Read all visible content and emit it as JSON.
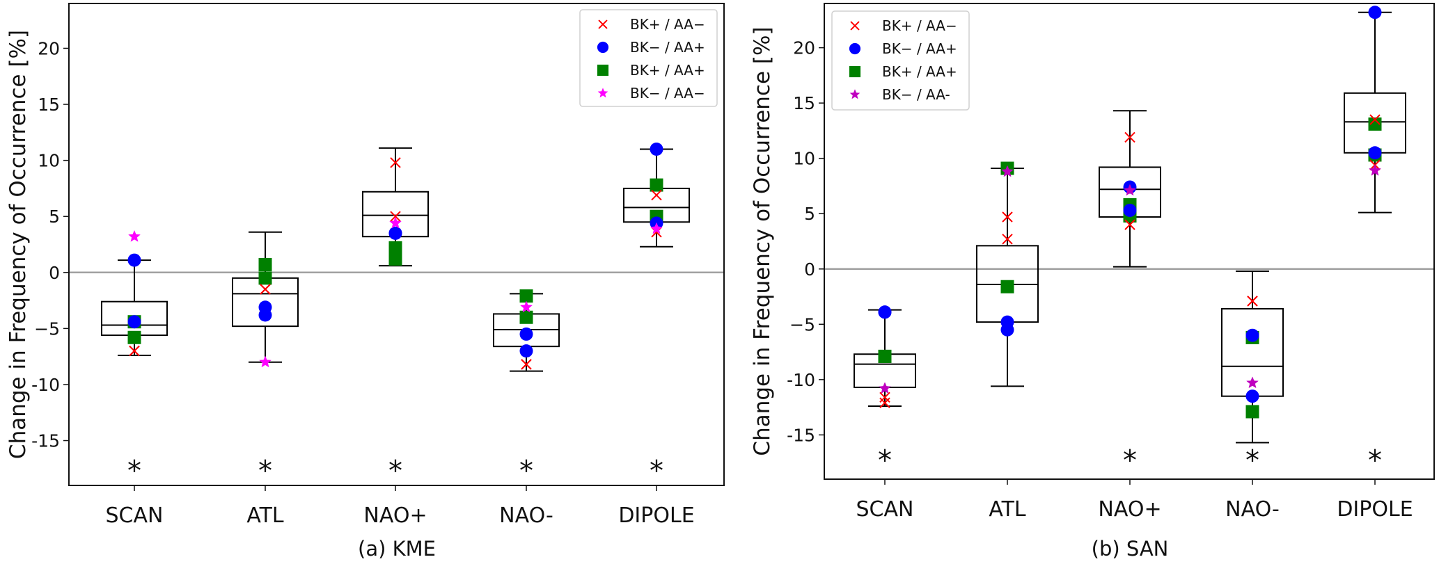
{
  "chart_data": [
    {
      "type": "box",
      "caption": "(a)  KME",
      "ylabel": "Change in Frequency of Occurrence [%]",
      "ylim": [
        -19,
        24
      ],
      "yticks": [
        -15,
        -10,
        -5,
        0,
        5,
        10,
        15,
        20
      ],
      "ytick_labels": [
        "-15",
        "-10",
        "−5",
        "0",
        "5",
        "10",
        "15",
        "20"
      ],
      "categories": [
        "SCAN",
        "ATL",
        "NAO+",
        "NAO-",
        "DIPOLE"
      ],
      "zero_line": true,
      "legend_position": "top-right",
      "legend": [
        {
          "key": "x",
          "label": "BK+ / AA−",
          "marker": "x",
          "color": "#ff0000"
        },
        {
          "key": "circle",
          "label": "BK− / AA+",
          "marker": "circle",
          "color": "#0000ff"
        },
        {
          "key": "square",
          "label": "BK+ / AA+",
          "marker": "square",
          "color": "#008000"
        },
        {
          "key": "star",
          "label": "BK− / AA−",
          "marker": "star",
          "color": "#ff00ff"
        }
      ],
      "boxes": [
        {
          "whisker_low": -7.4,
          "q1": -5.6,
          "median": -4.7,
          "q3": -2.6,
          "whisker_high": 1.1
        },
        {
          "whisker_low": -8.0,
          "q1": -4.8,
          "median": -1.9,
          "q3": -0.5,
          "whisker_high": 3.6
        },
        {
          "whisker_low": 0.6,
          "q1": 3.2,
          "median": 5.1,
          "q3": 7.2,
          "whisker_high": 11.1
        },
        {
          "whisker_low": -8.8,
          "q1": -6.6,
          "median": -5.1,
          "q3": -3.7,
          "whisker_high": -1.9
        },
        {
          "whisker_low": 2.3,
          "q1": 4.5,
          "median": 5.8,
          "q3": 7.5,
          "whisker_high": 11.0
        }
      ],
      "points": {
        "x": [
          [
            -7.0,
            -7.0
          ],
          [
            -1.5,
            -1.5
          ],
          [
            9.8,
            5.0
          ],
          [
            -8.2,
            -8.2
          ],
          [
            6.9,
            3.6
          ]
        ],
        "circle": [
          [
            1.1,
            -4.4
          ],
          [
            -3.1,
            -3.8
          ],
          [
            3.5,
            3.5
          ],
          [
            -5.5,
            -7.0
          ],
          [
            11.0,
            4.4
          ]
        ],
        "square": [
          [
            -4.4,
            -5.8
          ],
          [
            0.7,
            -0.5
          ],
          [
            2.2,
            1.2
          ],
          [
            -2.1,
            -4.0
          ],
          [
            7.8,
            5.0
          ]
        ],
        "star": [
          [
            3.2,
            3.2
          ],
          [
            -8.0,
            -8.0
          ],
          [
            4.4,
            4.4
          ],
          [
            -3.1,
            -3.1
          ],
          [
            3.9,
            3.9
          ]
        ]
      },
      "significance": [
        true,
        true,
        true,
        true,
        true
      ],
      "significance_marker": "*",
      "significance_y": -17.3
    },
    {
      "type": "box",
      "caption": "(b) SAN",
      "ylabel": "Change in Frequency of Occurrence [%]",
      "ylim": [
        -19,
        24
      ],
      "yticks": [
        -15,
        -10,
        -5,
        0,
        5,
        10,
        15,
        20
      ],
      "ytick_labels": [
        "-15",
        "-10",
        "−5",
        "0",
        "5",
        "10",
        "15",
        "20"
      ],
      "categories": [
        "SCAN",
        "ATL",
        "NAO+",
        "NAO-",
        "DIPOLE"
      ],
      "zero_line": true,
      "legend_position": "top-left",
      "legend": [
        {
          "key": "x",
          "label": "BK+ / AA−",
          "marker": "x",
          "color": "#ff0000"
        },
        {
          "key": "circle",
          "label": "BK− / AA+",
          "marker": "circle",
          "color": "#0000ff"
        },
        {
          "key": "square",
          "label": "BK+ / AA+",
          "marker": "square",
          "color": "#008000"
        },
        {
          "key": "star",
          "label": "BK− / AA-",
          "marker": "star",
          "color": "#bf00bf"
        }
      ],
      "boxes": [
        {
          "whisker_low": -12.4,
          "q1": -10.7,
          "median": -8.6,
          "q3": -7.7,
          "whisker_high": -3.7
        },
        {
          "whisker_low": -10.6,
          "q1": -4.8,
          "median": -1.4,
          "q3": 2.1,
          "whisker_high": 9.1
        },
        {
          "whisker_low": 0.2,
          "q1": 4.7,
          "median": 7.2,
          "q3": 9.2,
          "whisker_high": 14.3
        },
        {
          "whisker_low": -15.7,
          "q1": -11.5,
          "median": -8.8,
          "q3": -3.6,
          "whisker_high": -0.2
        },
        {
          "whisker_low": 5.1,
          "q1": 10.5,
          "median": 13.3,
          "q3": 15.9,
          "whisker_high": 23.2
        }
      ],
      "points": {
        "x": [
          [
            -11.6,
            -12.1
          ],
          [
            4.7,
            2.7
          ],
          [
            11.9,
            4.0
          ],
          [
            -2.9,
            -2.9
          ],
          [
            13.5,
            9.4
          ]
        ],
        "circle": [
          [
            -3.9,
            -3.9
          ],
          [
            -4.8,
            -5.5
          ],
          [
            7.4,
            5.3
          ],
          [
            -6.0,
            -11.5
          ],
          [
            23.2,
            10.5
          ]
        ],
        "square": [
          [
            -7.9,
            -7.9
          ],
          [
            9.1,
            -1.6
          ],
          [
            5.8,
            4.8
          ],
          [
            -6.2,
            -12.9
          ],
          [
            13.1,
            10.3
          ]
        ],
        "star": [
          [
            -10.8,
            -10.8
          ],
          [
            8.8,
            8.8
          ],
          [
            7.1,
            7.1
          ],
          [
            -10.3,
            -10.3
          ],
          [
            8.9,
            8.9
          ]
        ]
      },
      "significance": [
        true,
        false,
        true,
        true,
        true
      ],
      "significance_marker": "*",
      "significance_y": -16.9
    }
  ]
}
